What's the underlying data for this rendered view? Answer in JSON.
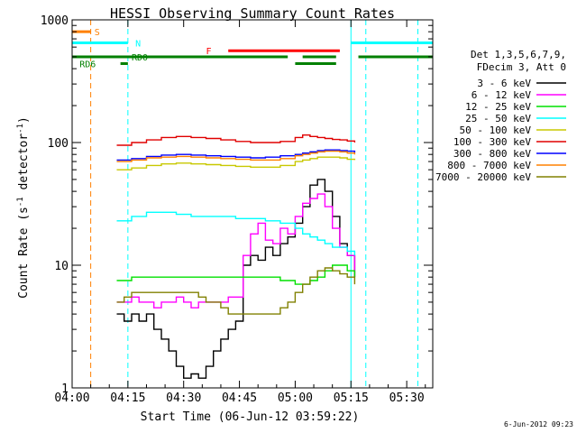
{
  "chart_data": {
    "type": "line",
    "title": "HESSI Observing Summary Count Rates",
    "xlabel": "Start Time (06-Jun-12 03:59:22)",
    "ylabel_main": "Count Rate (s",
    "ylabel_sup1": "-1",
    "ylabel_mid": " detector",
    "ylabel_sup2": "-1",
    "ylabel_end": ")",
    "yscale": "log",
    "ylim": [
      1,
      1000
    ],
    "xlim_min": [
      0,
      97
    ],
    "xticks": [
      {
        "min": 0,
        "label": "04:00"
      },
      {
        "min": 15,
        "label": "04:15"
      },
      {
        "min": 30,
        "label": "04:30"
      },
      {
        "min": 45,
        "label": "04:45"
      },
      {
        "min": 60,
        "label": "05:00"
      },
      {
        "min": 75,
        "label": "05:15"
      },
      {
        "min": 90,
        "label": "05:30"
      }
    ],
    "yticks": [
      {
        "value": 1,
        "label": "1"
      },
      {
        "value": 10,
        "label": "10"
      },
      {
        "value": 100,
        "label": "100"
      },
      {
        "value": 1000,
        "label": "1000"
      }
    ],
    "legend": {
      "header1": "Det 1,3,5,6,7,9,",
      "header2": "FDecim 3, Att 0",
      "entries": [
        {
          "label": "3 - 6 keV",
          "color": "#000000"
        },
        {
          "label": "6 - 12 keV",
          "color": "#ff00ff"
        },
        {
          "label": "12 - 25 keV",
          "color": "#00e000"
        },
        {
          "label": "25 - 50 keV",
          "color": "#00ffff"
        },
        {
          "label": "50 - 100 keV",
          "color": "#c8c800"
        },
        {
          "label": "100 - 300 keV",
          "color": "#e00000"
        },
        {
          "label": "300 - 800 keV",
          "color": "#0000ff"
        },
        {
          "label": "800 - 7000 keV",
          "color": "#ff8000"
        },
        {
          "label": "7000 - 20000 keV",
          "color": "#808000"
        }
      ]
    },
    "series": [
      {
        "name": "3 - 6 keV",
        "color": "#000000",
        "points": [
          [
            12,
            4
          ],
          [
            14,
            3.5
          ],
          [
            16,
            4
          ],
          [
            18,
            3.5
          ],
          [
            20,
            4
          ],
          [
            22,
            3
          ],
          [
            24,
            2.5
          ],
          [
            26,
            2
          ],
          [
            28,
            1.5
          ],
          [
            30,
            1.2
          ],
          [
            32,
            1.3
          ],
          [
            34,
            1.2
          ],
          [
            36,
            1.5
          ],
          [
            38,
            2
          ],
          [
            40,
            2.5
          ],
          [
            42,
            3
          ],
          [
            44,
            3.5
          ],
          [
            46,
            10
          ],
          [
            48,
            12
          ],
          [
            50,
            11
          ],
          [
            52,
            14
          ],
          [
            54,
            12
          ],
          [
            56,
            15
          ],
          [
            58,
            17
          ],
          [
            60,
            22
          ],
          [
            62,
            30
          ],
          [
            64,
            45
          ],
          [
            66,
            50
          ],
          [
            68,
            40
          ],
          [
            70,
            25
          ],
          [
            72,
            15
          ],
          [
            74,
            12
          ],
          [
            76,
            8
          ]
        ]
      },
      {
        "name": "6 - 12 keV",
        "color": "#ff00ff",
        "points": [
          [
            12,
            5
          ],
          [
            14,
            5
          ],
          [
            16,
            5.5
          ],
          [
            18,
            5
          ],
          [
            20,
            5
          ],
          [
            22,
            4.5
          ],
          [
            24,
            5
          ],
          [
            26,
            5
          ],
          [
            28,
            5.5
          ],
          [
            30,
            5
          ],
          [
            32,
            4.5
          ],
          [
            34,
            5
          ],
          [
            36,
            5
          ],
          [
            38,
            5
          ],
          [
            40,
            5
          ],
          [
            42,
            5.5
          ],
          [
            44,
            5.5
          ],
          [
            46,
            12
          ],
          [
            48,
            18
          ],
          [
            50,
            22
          ],
          [
            52,
            16
          ],
          [
            54,
            15
          ],
          [
            56,
            20
          ],
          [
            58,
            18
          ],
          [
            60,
            25
          ],
          [
            62,
            32
          ],
          [
            64,
            35
          ],
          [
            66,
            38
          ],
          [
            68,
            30
          ],
          [
            70,
            20
          ],
          [
            72,
            14
          ],
          [
            74,
            12
          ],
          [
            76,
            8
          ]
        ]
      },
      {
        "name": "12 - 25 keV",
        "color": "#00e000",
        "points": [
          [
            12,
            7.5
          ],
          [
            16,
            8
          ],
          [
            20,
            8
          ],
          [
            24,
            8
          ],
          [
            28,
            8
          ],
          [
            32,
            8
          ],
          [
            36,
            8
          ],
          [
            40,
            8
          ],
          [
            44,
            8
          ],
          [
            48,
            8
          ],
          [
            52,
            8
          ],
          [
            56,
            7.5
          ],
          [
            60,
            7
          ],
          [
            62,
            7
          ],
          [
            64,
            7.5
          ],
          [
            66,
            8
          ],
          [
            68,
            9
          ],
          [
            70,
            10
          ],
          [
            72,
            10
          ],
          [
            74,
            9
          ],
          [
            76,
            8
          ]
        ]
      },
      {
        "name": "25 - 50 keV",
        "color": "#00ffff",
        "points": [
          [
            12,
            23
          ],
          [
            16,
            25
          ],
          [
            20,
            27
          ],
          [
            24,
            27
          ],
          [
            28,
            26
          ],
          [
            32,
            25
          ],
          [
            36,
            25
          ],
          [
            40,
            25
          ],
          [
            44,
            24
          ],
          [
            48,
            24
          ],
          [
            52,
            23
          ],
          [
            56,
            22
          ],
          [
            60,
            20
          ],
          [
            62,
            18
          ],
          [
            64,
            17
          ],
          [
            66,
            16
          ],
          [
            68,
            15
          ],
          [
            70,
            14
          ],
          [
            72,
            14
          ],
          [
            74,
            13
          ],
          [
            76,
            12
          ]
        ]
      },
      {
        "name": "50 - 100 keV",
        "color": "#c8c800",
        "points": [
          [
            12,
            60
          ],
          [
            16,
            62
          ],
          [
            20,
            65
          ],
          [
            24,
            67
          ],
          [
            28,
            68
          ],
          [
            32,
            67
          ],
          [
            36,
            66
          ],
          [
            40,
            65
          ],
          [
            44,
            64
          ],
          [
            48,
            63
          ],
          [
            52,
            63
          ],
          [
            56,
            65
          ],
          [
            60,
            70
          ],
          [
            62,
            72
          ],
          [
            64,
            74
          ],
          [
            66,
            76
          ],
          [
            68,
            76
          ],
          [
            70,
            76
          ],
          [
            72,
            75
          ],
          [
            74,
            73
          ],
          [
            76,
            72
          ]
        ]
      },
      {
        "name": "100 - 300 keV",
        "color": "#e00000",
        "points": [
          [
            12,
            95
          ],
          [
            16,
            100
          ],
          [
            20,
            105
          ],
          [
            24,
            110
          ],
          [
            28,
            112
          ],
          [
            32,
            110
          ],
          [
            36,
            108
          ],
          [
            40,
            105
          ],
          [
            44,
            102
          ],
          [
            48,
            100
          ],
          [
            52,
            100
          ],
          [
            56,
            102
          ],
          [
            60,
            110
          ],
          [
            62,
            115
          ],
          [
            64,
            112
          ],
          [
            66,
            110
          ],
          [
            68,
            108
          ],
          [
            70,
            106
          ],
          [
            72,
            105
          ],
          [
            74,
            103
          ],
          [
            76,
            100
          ]
        ]
      },
      {
        "name": "300 - 800 keV",
        "color": "#0000ff",
        "points": [
          [
            12,
            72
          ],
          [
            16,
            74
          ],
          [
            20,
            77
          ],
          [
            24,
            79
          ],
          [
            28,
            80
          ],
          [
            32,
            79
          ],
          [
            36,
            78
          ],
          [
            40,
            77
          ],
          [
            44,
            76
          ],
          [
            48,
            75
          ],
          [
            52,
            76
          ],
          [
            56,
            78
          ],
          [
            60,
            80
          ],
          [
            62,
            82
          ],
          [
            64,
            84
          ],
          [
            66,
            86
          ],
          [
            68,
            87
          ],
          [
            70,
            87
          ],
          [
            72,
            86
          ],
          [
            74,
            85
          ],
          [
            76,
            83
          ]
        ]
      },
      {
        "name": "800 - 7000 keV",
        "color": "#ff8000",
        "points": [
          [
            12,
            70
          ],
          [
            16,
            72
          ],
          [
            20,
            75
          ],
          [
            24,
            76
          ],
          [
            28,
            77
          ],
          [
            32,
            76
          ],
          [
            36,
            75
          ],
          [
            40,
            74
          ],
          [
            44,
            73
          ],
          [
            48,
            72
          ],
          [
            52,
            72
          ],
          [
            56,
            74
          ],
          [
            60,
            78
          ],
          [
            62,
            80
          ],
          [
            64,
            82
          ],
          [
            66,
            84
          ],
          [
            68,
            85
          ],
          [
            70,
            85
          ],
          [
            72,
            84
          ],
          [
            74,
            82
          ],
          [
            76,
            80
          ]
        ]
      },
      {
        "name": "7000 - 20000 keV",
        "color": "#808000",
        "points": [
          [
            12,
            5
          ],
          [
            14,
            5.5
          ],
          [
            16,
            6
          ],
          [
            18,
            6
          ],
          [
            20,
            6
          ],
          [
            22,
            6
          ],
          [
            24,
            6
          ],
          [
            26,
            6
          ],
          [
            28,
            6
          ],
          [
            30,
            6
          ],
          [
            32,
            6
          ],
          [
            34,
            5.5
          ],
          [
            36,
            5
          ],
          [
            38,
            5
          ],
          [
            40,
            4.5
          ],
          [
            42,
            4
          ],
          [
            44,
            4
          ],
          [
            46,
            4
          ],
          [
            48,
            4
          ],
          [
            50,
            4
          ],
          [
            52,
            4
          ],
          [
            54,
            4
          ],
          [
            56,
            4.5
          ],
          [
            58,
            5
          ],
          [
            60,
            6
          ],
          [
            62,
            7
          ],
          [
            64,
            8
          ],
          [
            66,
            9
          ],
          [
            68,
            9.5
          ],
          [
            70,
            9
          ],
          [
            72,
            8.5
          ],
          [
            74,
            8
          ],
          [
            76,
            7
          ]
        ]
      }
    ],
    "bars": [
      {
        "label": "S",
        "color": "#ff8000",
        "y": 800,
        "segments": [
          [
            0,
            5
          ]
        ],
        "label_min": 6
      },
      {
        "label": "N",
        "color": "#00ffff",
        "y": 650,
        "segments": [
          [
            0,
            15
          ],
          [
            75,
            97
          ]
        ],
        "label_min": 17
      },
      {
        "label": "F",
        "color": "#ff0000",
        "y": 560,
        "segments": [
          [
            42,
            72
          ]
        ],
        "label_min": 36
      },
      {
        "label": "RD0",
        "color": "#008000",
        "y": 500,
        "segments": [
          [
            0,
            58
          ],
          [
            62,
            71
          ],
          [
            77,
            97
          ]
        ],
        "label_min": 16
      },
      {
        "label": "RD6",
        "color": "#008000",
        "y": 440,
        "segments": [
          [
            13,
            15
          ],
          [
            60,
            71
          ]
        ],
        "label_min": 2
      }
    ],
    "vlines": [
      {
        "min": 5,
        "color": "#ff8000",
        "style": "dashed"
      },
      {
        "min": 15,
        "color": "#00ffff",
        "style": "dashed"
      },
      {
        "min": 75,
        "color": "#00ffff",
        "style": "solid"
      },
      {
        "min": 79,
        "color": "#00ffff",
        "style": "dashed"
      },
      {
        "min": 93,
        "color": "#00ffff",
        "style": "dashed"
      }
    ]
  },
  "timestamp": "6-Jun-2012 09:23"
}
